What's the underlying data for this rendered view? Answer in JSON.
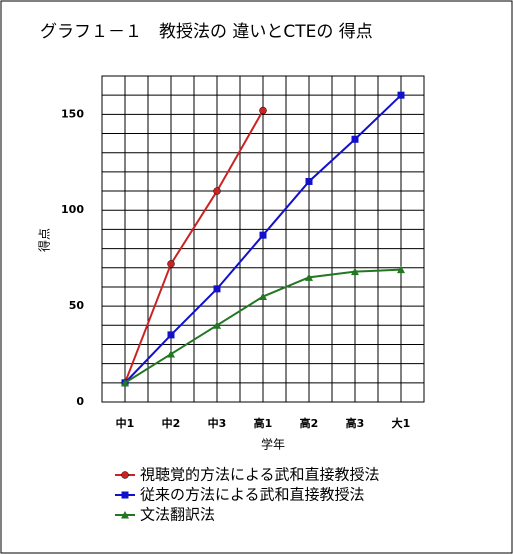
{
  "chart_data": {
    "type": "line",
    "title": "グラフ１－１　教授法の 違いとCTEの 得点",
    "x_label": "学年",
    "y_label": "得点",
    "categories": [
      "中1",
      "中2",
      "中3",
      "高1",
      "高2",
      "高3",
      "大1"
    ],
    "series": [
      {
        "name": "視聴覚的方法による武和直接教授法",
        "color": "#cc2222",
        "marker": "circle",
        "values": [
          10,
          72,
          110,
          152,
          null,
          null,
          null
        ]
      },
      {
        "name": "従来の方法による武和直接教授法",
        "color": "#1111cc",
        "marker": "square",
        "values": [
          10,
          35,
          59,
          87,
          115,
          137,
          160
        ]
      },
      {
        "name": "文法翻訳法",
        "color": "#227722",
        "marker": "triangle",
        "values": [
          10,
          25,
          40,
          55,
          65,
          68,
          69
        ]
      }
    ],
    "ylim": [
      0,
      170
    ],
    "yticks": [
      0,
      50,
      100,
      150
    ],
    "minor_yticks": [
      10,
      20,
      30,
      40,
      60,
      70,
      80,
      90,
      110,
      120,
      130,
      140,
      160,
      170
    ],
    "grid": true
  }
}
